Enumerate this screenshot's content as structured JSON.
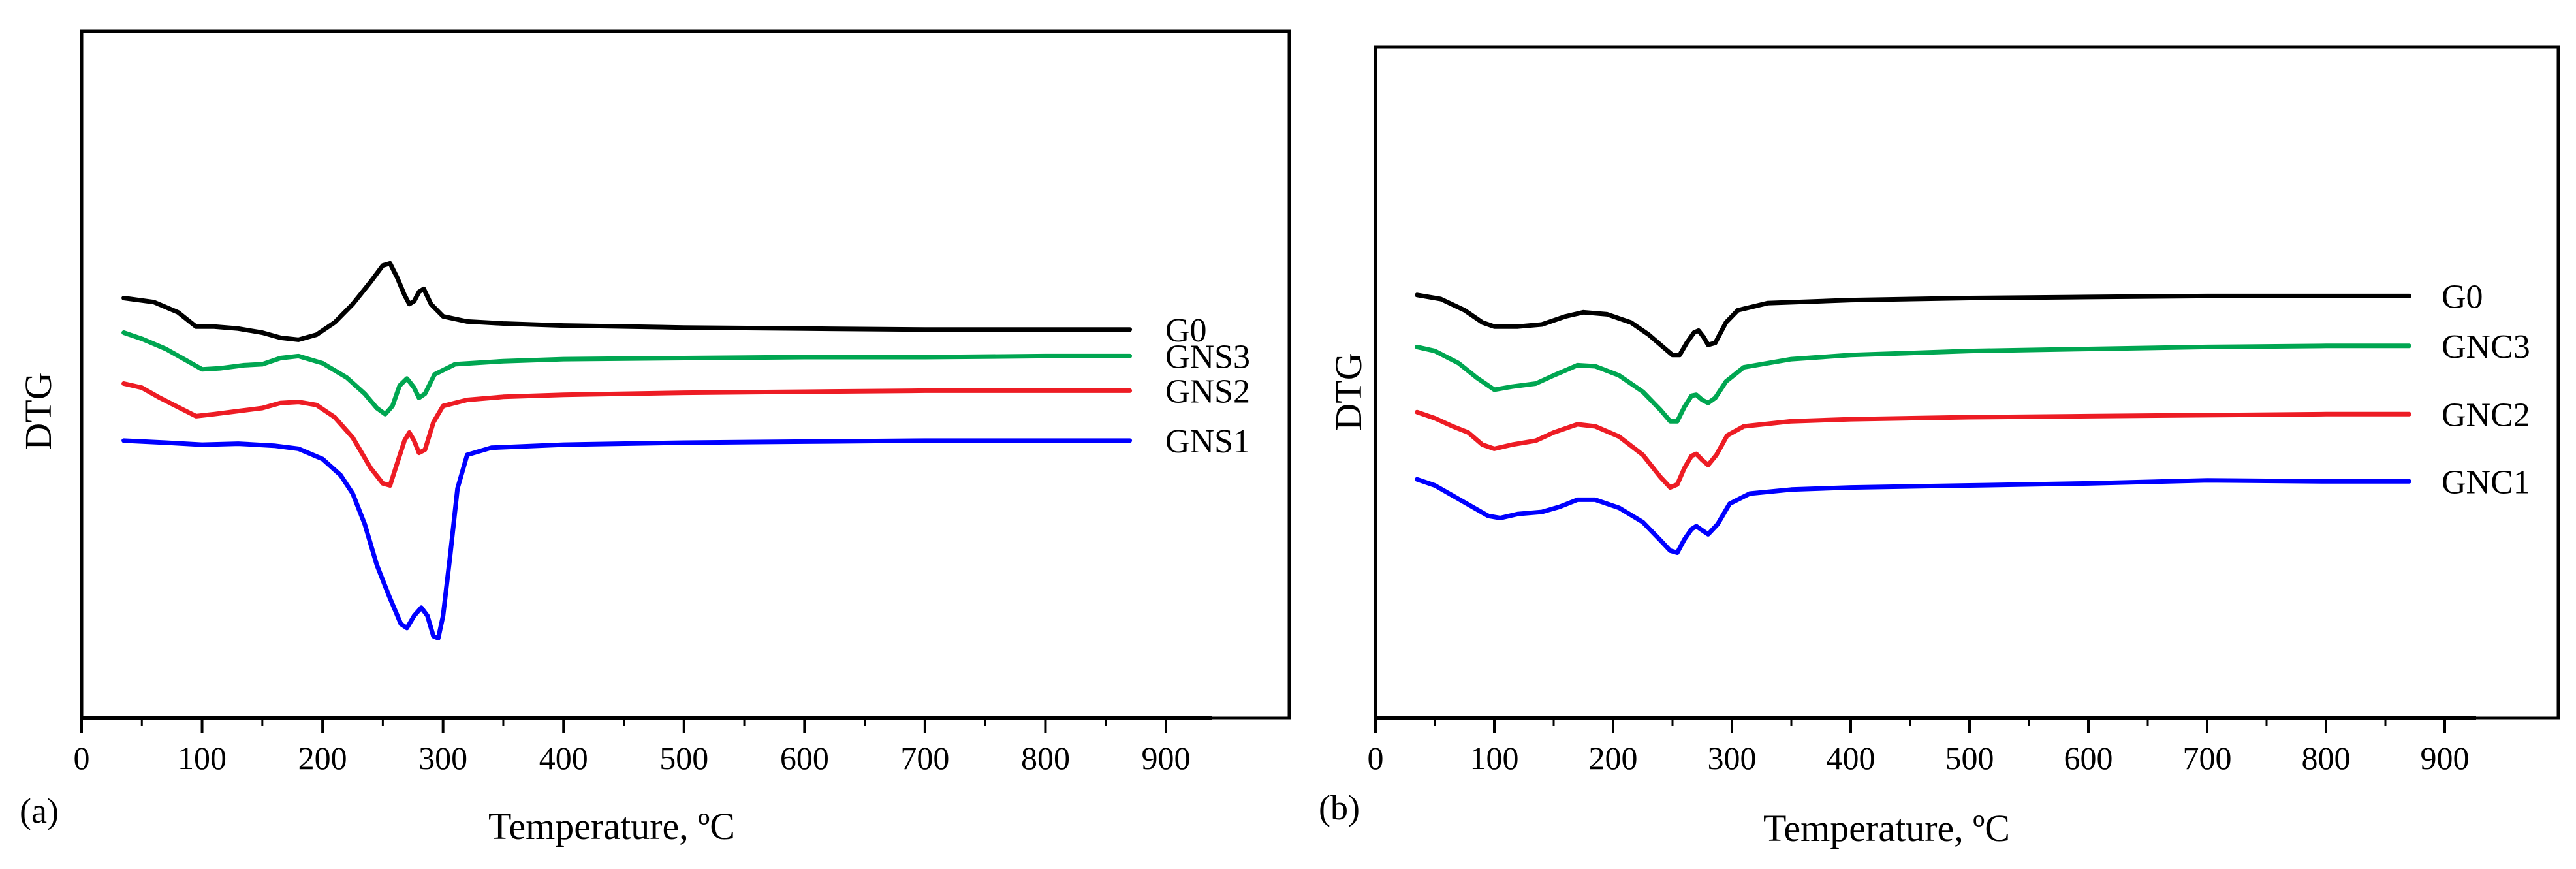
{
  "chart_data": [
    {
      "type": "line",
      "panel_label": "(a)",
      "xlabel": "Temperature, ºC",
      "ylabel": "DTG",
      "xlim": [
        0,
        1000
      ],
      "x_ticks": [
        0,
        100,
        200,
        300,
        400,
        500,
        600,
        700,
        800,
        900
      ],
      "series": [
        {
          "name": "G0",
          "color": "#000000",
          "points": [
            [
              35,
              92
            ],
            [
              60,
              88
            ],
            [
              80,
              78
            ],
            [
              95,
              64
            ],
            [
              110,
              64
            ],
            [
              130,
              62
            ],
            [
              150,
              58
            ],
            [
              165,
              53
            ],
            [
              180,
              51
            ],
            [
              195,
              56
            ],
            [
              210,
              68
            ],
            [
              225,
              86
            ],
            [
              240,
              108
            ],
            [
              250,
              124
            ],
            [
              256,
              126
            ],
            [
              262,
              112
            ],
            [
              268,
              95
            ],
            [
              272,
              86
            ],
            [
              276,
              89
            ],
            [
              280,
              98
            ],
            [
              284,
              101
            ],
            [
              290,
              86
            ],
            [
              300,
              74
            ],
            [
              320,
              69
            ],
            [
              350,
              67
            ],
            [
              400,
              65
            ],
            [
              500,
              63
            ],
            [
              600,
              62
            ],
            [
              700,
              61
            ],
            [
              800,
              61
            ],
            [
              870,
              61
            ]
          ]
        },
        {
          "name": "GNS3",
          "color": "#00a651",
          "points": [
            [
              35,
              58
            ],
            [
              50,
              52
            ],
            [
              70,
              42
            ],
            [
              85,
              32
            ],
            [
              100,
              22
            ],
            [
              115,
              23
            ],
            [
              135,
              26
            ],
            [
              150,
              27
            ],
            [
              165,
              33
            ],
            [
              180,
              35
            ],
            [
              200,
              28
            ],
            [
              220,
              14
            ],
            [
              235,
              -2
            ],
            [
              245,
              -16
            ],
            [
              252,
              -22
            ],
            [
              258,
              -14
            ],
            [
              264,
              6
            ],
            [
              270,
              13
            ],
            [
              276,
              4
            ],
            [
              280,
              -6
            ],
            [
              285,
              -2
            ],
            [
              293,
              17
            ],
            [
              310,
              27
            ],
            [
              350,
              30
            ],
            [
              400,
              32
            ],
            [
              500,
              33
            ],
            [
              600,
              34
            ],
            [
              700,
              34
            ],
            [
              800,
              35
            ],
            [
              870,
              35
            ]
          ]
        },
        {
          "name": "GNS2",
          "color": "#ed1c24",
          "points": [
            [
              35,
              8
            ],
            [
              50,
              4
            ],
            [
              65,
              -6
            ],
            [
              75,
              -12
            ],
            [
              85,
              -18
            ],
            [
              95,
              -24
            ],
            [
              110,
              -22
            ],
            [
              130,
              -19
            ],
            [
              150,
              -16
            ],
            [
              165,
              -11
            ],
            [
              180,
              -10
            ],
            [
              195,
              -13
            ],
            [
              210,
              -25
            ],
            [
              225,
              -45
            ],
            [
              240,
              -75
            ],
            [
              250,
              -90
            ],
            [
              256,
              -92
            ],
            [
              262,
              -70
            ],
            [
              268,
              -48
            ],
            [
              272,
              -40
            ],
            [
              276,
              -48
            ],
            [
              280,
              -60
            ],
            [
              285,
              -57
            ],
            [
              292,
              -30
            ],
            [
              300,
              -14
            ],
            [
              320,
              -8
            ],
            [
              350,
              -5
            ],
            [
              400,
              -3
            ],
            [
              500,
              -1
            ],
            [
              600,
              0
            ],
            [
              700,
              1
            ],
            [
              800,
              1
            ],
            [
              870,
              1
            ]
          ]
        },
        {
          "name": "GNS1",
          "color": "#0000ff",
          "points": [
            [
              35,
              -48
            ],
            [
              70,
              -50
            ],
            [
              100,
              -52
            ],
            [
              130,
              -51
            ],
            [
              160,
              -53
            ],
            [
              180,
              -56
            ],
            [
              200,
              -66
            ],
            [
              215,
              -82
            ],
            [
              225,
              -100
            ],
            [
              235,
              -130
            ],
            [
              245,
              -170
            ],
            [
              255,
              -200
            ],
            [
              265,
              -228
            ],
            [
              270,
              -232
            ],
            [
              276,
              -220
            ],
            [
              282,
              -212
            ],
            [
              287,
              -220
            ],
            [
              292,
              -240
            ],
            [
              296,
              -242
            ],
            [
              300,
              -220
            ],
            [
              306,
              -160
            ],
            [
              312,
              -95
            ],
            [
              320,
              -62
            ],
            [
              340,
              -55
            ],
            [
              400,
              -52
            ],
            [
              500,
              -50
            ],
            [
              600,
              -49
            ],
            [
              700,
              -48
            ],
            [
              800,
              -48
            ],
            [
              870,
              -48
            ]
          ]
        }
      ]
    },
    {
      "type": "line",
      "panel_label": "(b)",
      "xlabel": "Temperature, ºC",
      "ylabel": "DTG",
      "xlim": [
        0,
        1000
      ],
      "x_ticks": [
        0,
        100,
        200,
        300,
        400,
        500,
        600,
        700,
        800,
        900
      ],
      "series": [
        {
          "name": "G0",
          "color": "#000000",
          "points": [
            [
              35,
              95
            ],
            [
              55,
              91
            ],
            [
              75,
              80
            ],
            [
              90,
              68
            ],
            [
              100,
              64
            ],
            [
              120,
              64
            ],
            [
              140,
              66
            ],
            [
              160,
              74
            ],
            [
              175,
              78
            ],
            [
              195,
              76
            ],
            [
              215,
              68
            ],
            [
              230,
              56
            ],
            [
              242,
              44
            ],
            [
              250,
              36
            ],
            [
              256,
              36
            ],
            [
              262,
              48
            ],
            [
              268,
              58
            ],
            [
              272,
              60
            ],
            [
              276,
              54
            ],
            [
              280,
              46
            ],
            [
              286,
              48
            ],
            [
              295,
              68
            ],
            [
              305,
              80
            ],
            [
              330,
              87
            ],
            [
              400,
              90
            ],
            [
              500,
              92
            ],
            [
              600,
              93
            ],
            [
              700,
              94
            ],
            [
              800,
              94
            ],
            [
              870,
              94
            ]
          ]
        },
        {
          "name": "GNC3",
          "color": "#00a651",
          "points": [
            [
              35,
              44
            ],
            [
              50,
              40
            ],
            [
              70,
              28
            ],
            [
              85,
              14
            ],
            [
              100,
              2
            ],
            [
              115,
              5
            ],
            [
              135,
              8
            ],
            [
              150,
              16
            ],
            [
              170,
              26
            ],
            [
              185,
              25
            ],
            [
              205,
              16
            ],
            [
              225,
              0
            ],
            [
              240,
              -18
            ],
            [
              248,
              -29
            ],
            [
              254,
              -29
            ],
            [
              260,
              -15
            ],
            [
              266,
              -4
            ],
            [
              270,
              -3
            ],
            [
              275,
              -8
            ],
            [
              280,
              -11
            ],
            [
              286,
              -6
            ],
            [
              295,
              10
            ],
            [
              310,
              24
            ],
            [
              350,
              32
            ],
            [
              400,
              36
            ],
            [
              500,
              40
            ],
            [
              600,
              42
            ],
            [
              700,
              44
            ],
            [
              800,
              45
            ],
            [
              870,
              45
            ]
          ]
        },
        {
          "name": "GNC2",
          "color": "#ed1c24",
          "points": [
            [
              35,
              -20
            ],
            [
              50,
              -26
            ],
            [
              65,
              -34
            ],
            [
              78,
              -40
            ],
            [
              90,
              -52
            ],
            [
              100,
              -56
            ],
            [
              115,
              -52
            ],
            [
              135,
              -48
            ],
            [
              150,
              -40
            ],
            [
              170,
              -32
            ],
            [
              185,
              -34
            ],
            [
              205,
              -44
            ],
            [
              225,
              -62
            ],
            [
              240,
              -84
            ],
            [
              248,
              -94
            ],
            [
              254,
              -91
            ],
            [
              260,
              -75
            ],
            [
              266,
              -63
            ],
            [
              270,
              -61
            ],
            [
              275,
              -67
            ],
            [
              280,
              -72
            ],
            [
              287,
              -62
            ],
            [
              296,
              -43
            ],
            [
              310,
              -34
            ],
            [
              350,
              -29
            ],
            [
              400,
              -27
            ],
            [
              500,
              -25
            ],
            [
              600,
              -24
            ],
            [
              700,
              -23
            ],
            [
              800,
              -22
            ],
            [
              870,
              -22
            ]
          ]
        },
        {
          "name": "GNC1",
          "color": "#0000ff",
          "points": [
            [
              35,
              -86
            ],
            [
              50,
              -92
            ],
            [
              65,
              -102
            ],
            [
              80,
              -112
            ],
            [
              95,
              -122
            ],
            [
              105,
              -124
            ],
            [
              120,
              -120
            ],
            [
              140,
              -118
            ],
            [
              155,
              -113
            ],
            [
              170,
              -106
            ],
            [
              185,
              -106
            ],
            [
              205,
              -114
            ],
            [
              225,
              -128
            ],
            [
              240,
              -146
            ],
            [
              248,
              -156
            ],
            [
              254,
              -158
            ],
            [
              260,
              -145
            ],
            [
              266,
              -135
            ],
            [
              270,
              -132
            ],
            [
              275,
              -136
            ],
            [
              280,
              -140
            ],
            [
              288,
              -130
            ],
            [
              298,
              -110
            ],
            [
              315,
              -100
            ],
            [
              350,
              -96
            ],
            [
              400,
              -94
            ],
            [
              500,
              -92
            ],
            [
              600,
              -90
            ],
            [
              700,
              -87
            ],
            [
              800,
              -88
            ],
            [
              870,
              -88
            ]
          ]
        }
      ]
    }
  ]
}
